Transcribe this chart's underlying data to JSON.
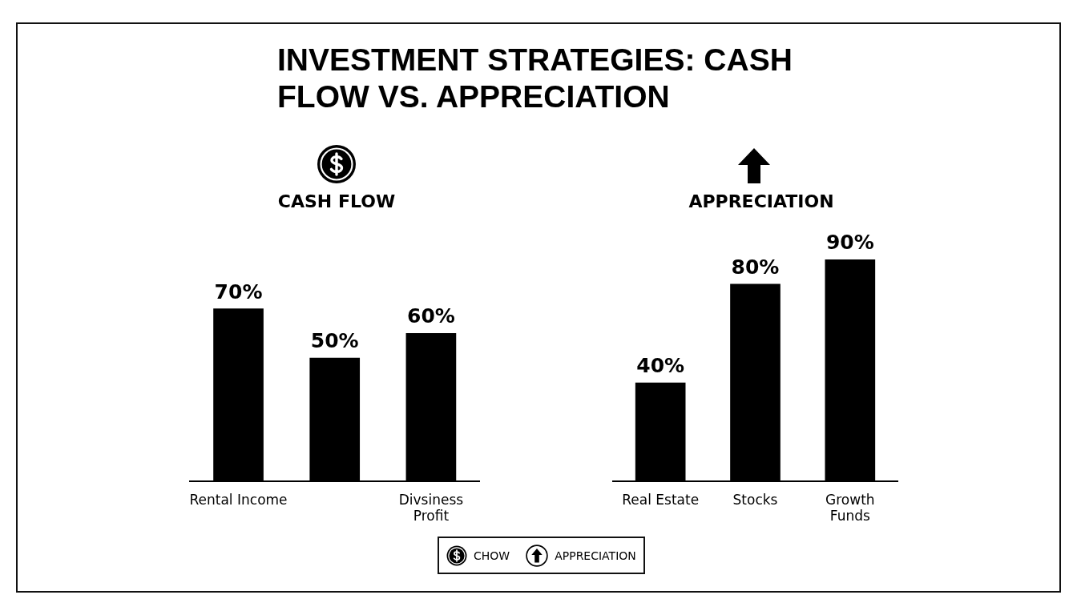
{
  "chart_data": [
    {
      "type": "bar",
      "title": "INVESTMENT STRATEGIES: CASH FLOW VS. APPRECIATION",
      "subtitle": "CASH FLOW",
      "categories": [
        "Rental Income",
        null,
        "Divsiness Profit"
      ],
      "series": [
        {
          "name": "CHOW",
          "color": "#000000",
          "values": [
            70,
            50,
            60
          ],
          "value_labels": [
            "70%",
            "50%",
            "60%"
          ]
        }
      ],
      "legend": "bottom",
      "tick_labels": "x"
    },
    {
      "type": "bar",
      "subtitle": "APPRECIATION",
      "categories": [
        "Real Estate",
        "Stocks",
        "Growth Funds"
      ],
      "series": [
        {
          "name": "APPRECIATION",
          "color": "#000000",
          "values": [
            40,
            80,
            90
          ],
          "value_labels": [
            "40%",
            "80%",
            "90%"
          ]
        }
      ],
      "legend": "bottom",
      "tick_labels": "x"
    }
  ]
}
